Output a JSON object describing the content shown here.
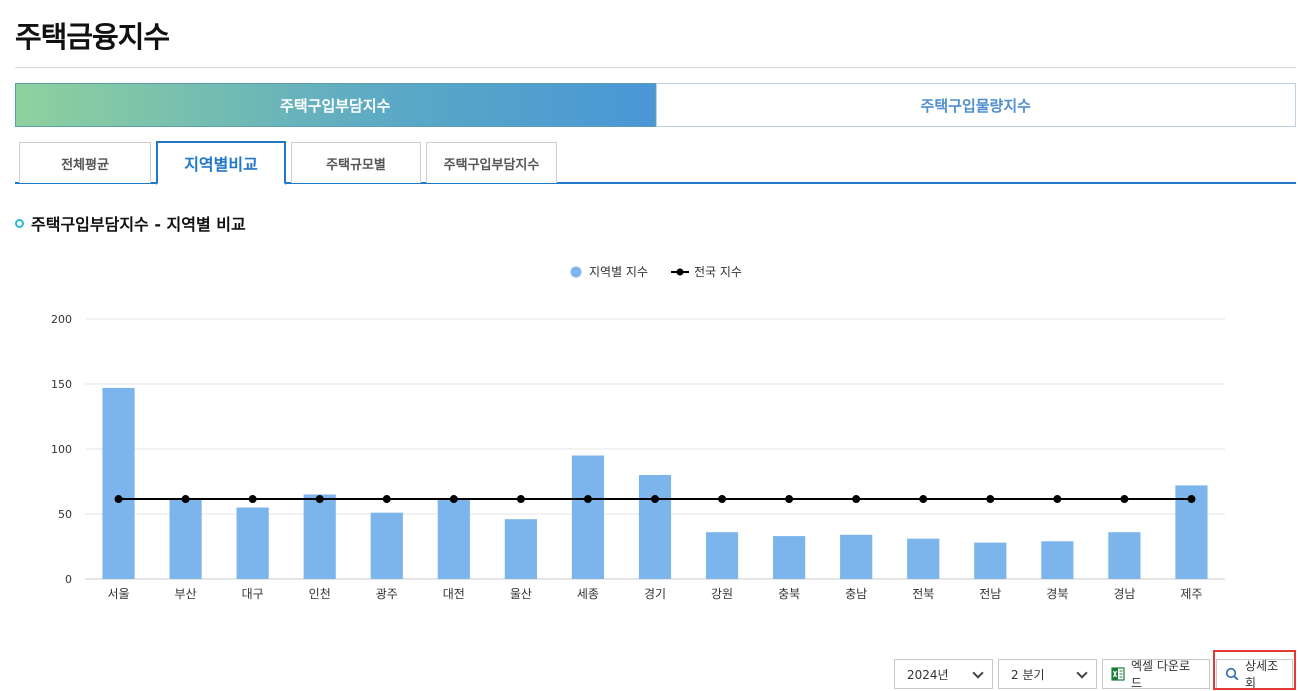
{
  "header": {
    "title": "주택금융지수"
  },
  "main_tabs": [
    {
      "label": "주택구입부담지수",
      "active": true
    },
    {
      "label": "주택구입물량지수",
      "active": false
    }
  ],
  "sub_tabs": [
    {
      "label": "전체평균",
      "active": false
    },
    {
      "label": "지역별비교",
      "active": true
    },
    {
      "label": "주택규모별",
      "active": false
    },
    {
      "label": "주택구입부담지수",
      "active": false
    }
  ],
  "section": {
    "title": "주택구입부담지수 - 지역별 비교"
  },
  "chart_data": {
    "type": "bar",
    "categories": [
      "서울",
      "부산",
      "대구",
      "인천",
      "광주",
      "대전",
      "울산",
      "세종",
      "경기",
      "강원",
      "충북",
      "충남",
      "전북",
      "전남",
      "경북",
      "경남",
      "제주"
    ],
    "series": [
      {
        "name": "지역별 지수",
        "type": "bar",
        "color": "#7cb5ec",
        "values": [
          147,
          62,
          55,
          65,
          51,
          61,
          46,
          95,
          80,
          36,
          33,
          34,
          31,
          28,
          29,
          36,
          72
        ]
      },
      {
        "name": "전국 지수",
        "type": "line",
        "color": "#000000",
        "values": [
          61.5,
          61.5,
          61.5,
          61.5,
          61.5,
          61.5,
          61.5,
          61.5,
          61.5,
          61.5,
          61.5,
          61.5,
          61.5,
          61.5,
          61.5,
          61.5,
          61.5
        ]
      }
    ],
    "y_ticks": [
      "0",
      "50",
      "100",
      "150",
      "200"
    ],
    "ylim": [
      0,
      200
    ],
    "grid": true,
    "legend": "top-center"
  },
  "controls": {
    "year": "2024년",
    "quarter": "2 분기",
    "excel_label": "엑셀 다운로드",
    "search_label": "상세조회"
  },
  "icons": {
    "excel": "excel-icon",
    "search": "search-icon"
  }
}
